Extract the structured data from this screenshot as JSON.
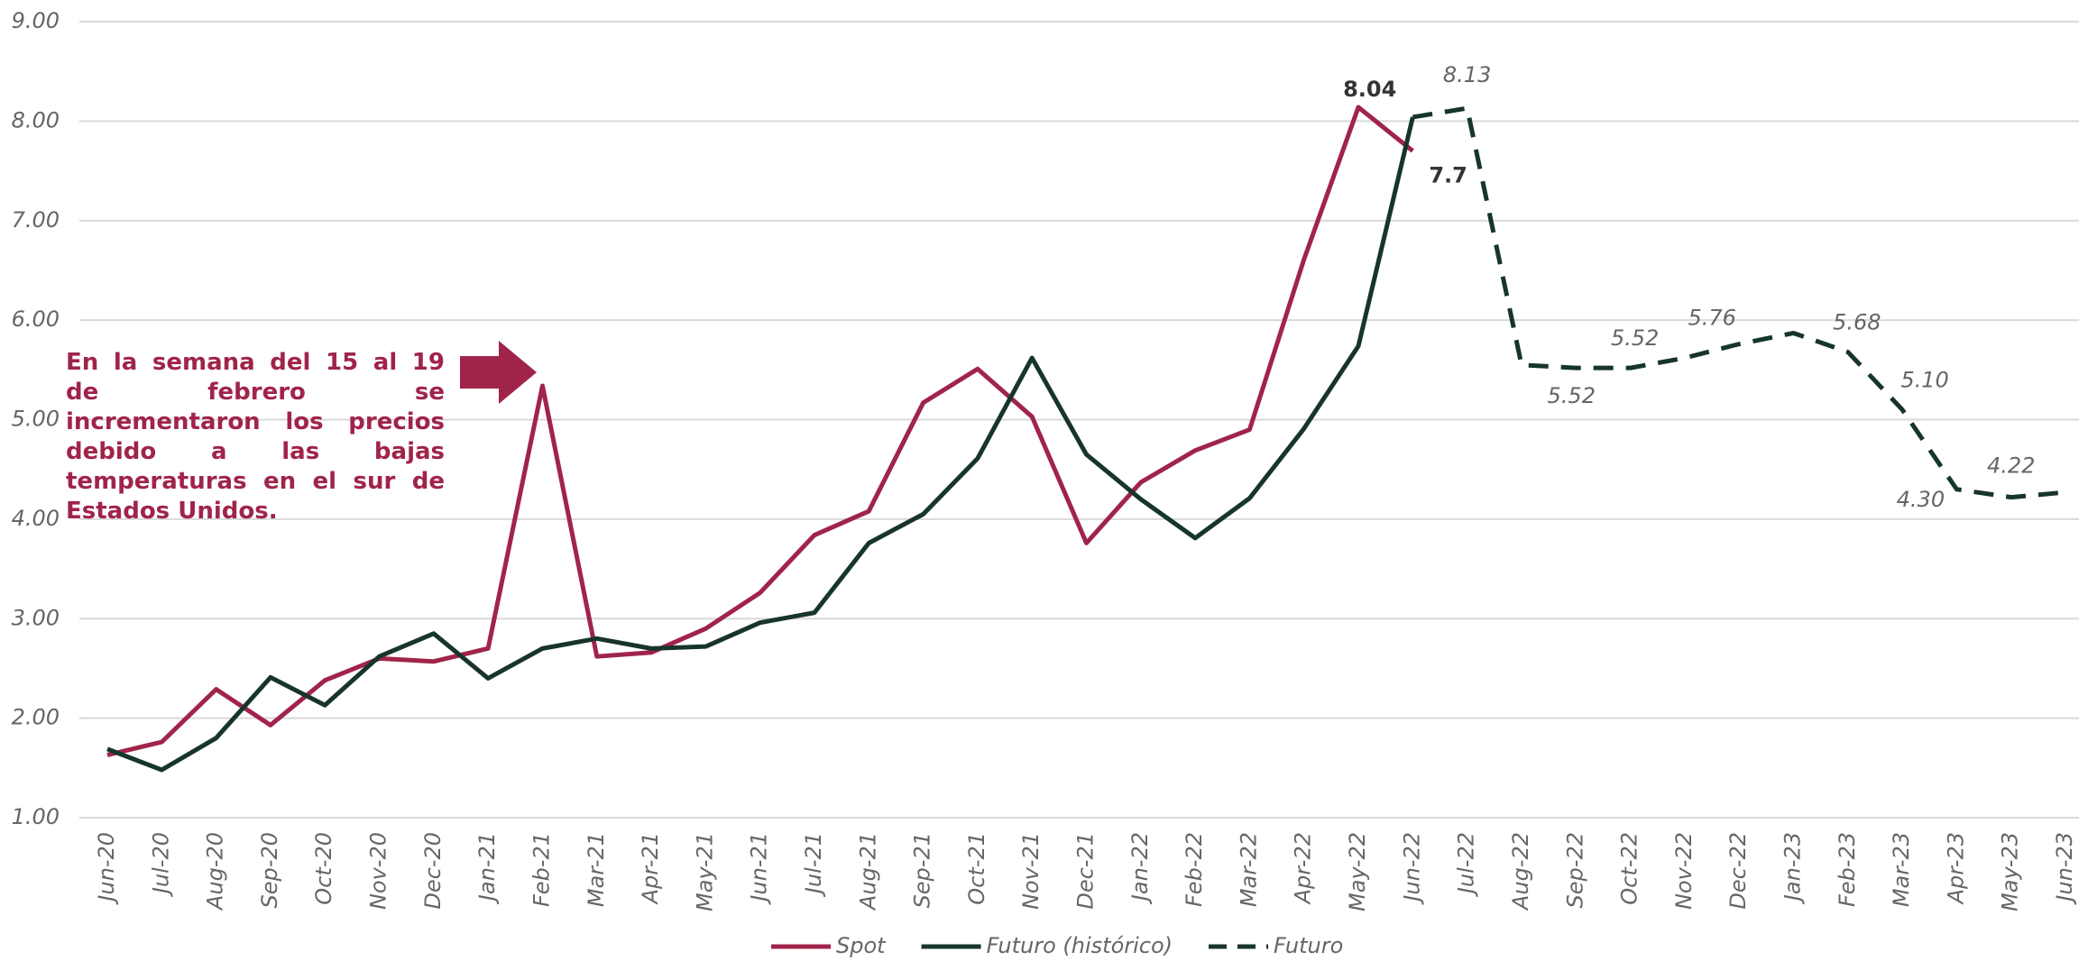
{
  "chart_data": {
    "type": "line",
    "categories": [
      "Jun-20",
      "Jul-20",
      "Aug-20",
      "Sep-20",
      "Oct-20",
      "Nov-20",
      "Dec-20",
      "Jan-21",
      "Feb-21",
      "Mar-21",
      "Apr-21",
      "May-21",
      "Jun-21",
      "Jul-21",
      "Aug-21",
      "Sep-21",
      "Oct-21",
      "Nov-21",
      "Dec-21",
      "Jan-22",
      "Feb-22",
      "Mar-22",
      "Apr-22",
      "May-22",
      "Jun-22",
      "Jul-22",
      "Aug-22",
      "Sep-22",
      "Oct-22",
      "Nov-22",
      "Dec-22",
      "Jan-23",
      "Feb-23",
      "Mar-23",
      "Apr-23",
      "May-23",
      "Jun-23"
    ],
    "series": [
      {
        "name": "Spot",
        "color": "#a0244a",
        "dash": false,
        "values": [
          1.63,
          1.76,
          2.29,
          1.93,
          2.38,
          2.6,
          2.57,
          2.7,
          5.34,
          2.62,
          2.66,
          2.9,
          3.26,
          3.84,
          4.08,
          5.17,
          5.51,
          5.03,
          3.76,
          4.37,
          4.69,
          4.9,
          6.61,
          8.14,
          7.7,
          null,
          null,
          null,
          null,
          null,
          null,
          null,
          null,
          null,
          null,
          null,
          null
        ],
        "value_labels": [
          null,
          null,
          null,
          null,
          null,
          null,
          null,
          null,
          null,
          null,
          null,
          null,
          null,
          null,
          null,
          null,
          null,
          null,
          null,
          null,
          null,
          null,
          null,
          null,
          "7.7",
          null,
          null,
          null,
          null,
          null,
          null,
          null,
          null,
          null,
          null,
          null,
          null
        ]
      },
      {
        "name": "Futuro (histórico)",
        "color": "#17352b",
        "dash": false,
        "values": [
          1.69,
          1.48,
          1.8,
          2.41,
          2.13,
          2.62,
          2.85,
          2.4,
          2.7,
          2.8,
          2.7,
          2.72,
          2.96,
          3.06,
          3.76,
          4.05,
          4.61,
          5.62,
          4.65,
          4.2,
          3.81,
          4.21,
          4.91,
          5.74,
          8.04,
          null,
          null,
          null,
          null,
          null,
          null,
          null,
          null,
          null,
          null,
          null,
          null
        ],
        "value_labels": [
          null,
          null,
          null,
          null,
          null,
          null,
          null,
          null,
          null,
          null,
          null,
          null,
          null,
          null,
          null,
          null,
          null,
          null,
          null,
          null,
          null,
          null,
          null,
          null,
          "8.04",
          null,
          null,
          null,
          null,
          null,
          null,
          null,
          null,
          null,
          null,
          null,
          null
        ]
      },
      {
        "name": "Futuro",
        "color": "#17352b",
        "dash": true,
        "values": [
          null,
          null,
          null,
          null,
          null,
          null,
          null,
          null,
          null,
          null,
          null,
          null,
          null,
          null,
          null,
          null,
          null,
          null,
          null,
          null,
          null,
          null,
          null,
          null,
          8.04,
          8.13,
          5.55,
          5.52,
          5.52,
          5.62,
          5.76,
          5.87,
          5.68,
          5.1,
          4.3,
          4.22,
          4.27
        ],
        "value_labels": [
          null,
          null,
          null,
          null,
          null,
          null,
          null,
          null,
          null,
          null,
          null,
          null,
          null,
          null,
          null,
          null,
          null,
          null,
          null,
          null,
          null,
          null,
          null,
          null,
          null,
          "8.13",
          null,
          "5.52",
          "5.52",
          null,
          "5.76",
          null,
          "5.68",
          "5.10",
          "4.30",
          "4.22",
          null
        ]
      }
    ],
    "ylim": [
      1,
      9
    ],
    "yticks": [
      {
        "value": 1,
        "label": "1.00"
      },
      {
        "value": 2,
        "label": "2.00"
      },
      {
        "value": 3,
        "label": "3.00"
      },
      {
        "value": 4,
        "label": "4.00"
      },
      {
        "value": 5,
        "label": "5.00"
      },
      {
        "value": 6,
        "label": "6.00"
      },
      {
        "value": 7,
        "label": "7.00"
      },
      {
        "value": 8,
        "label": "8.00"
      },
      {
        "value": 9,
        "label": "9.00"
      }
    ],
    "grid": true,
    "annotation": "En la semana del 15 al 19 de febrero se incrementaron los precios debido a las bajas temperaturas en el sur de Estados Unidos."
  }
}
